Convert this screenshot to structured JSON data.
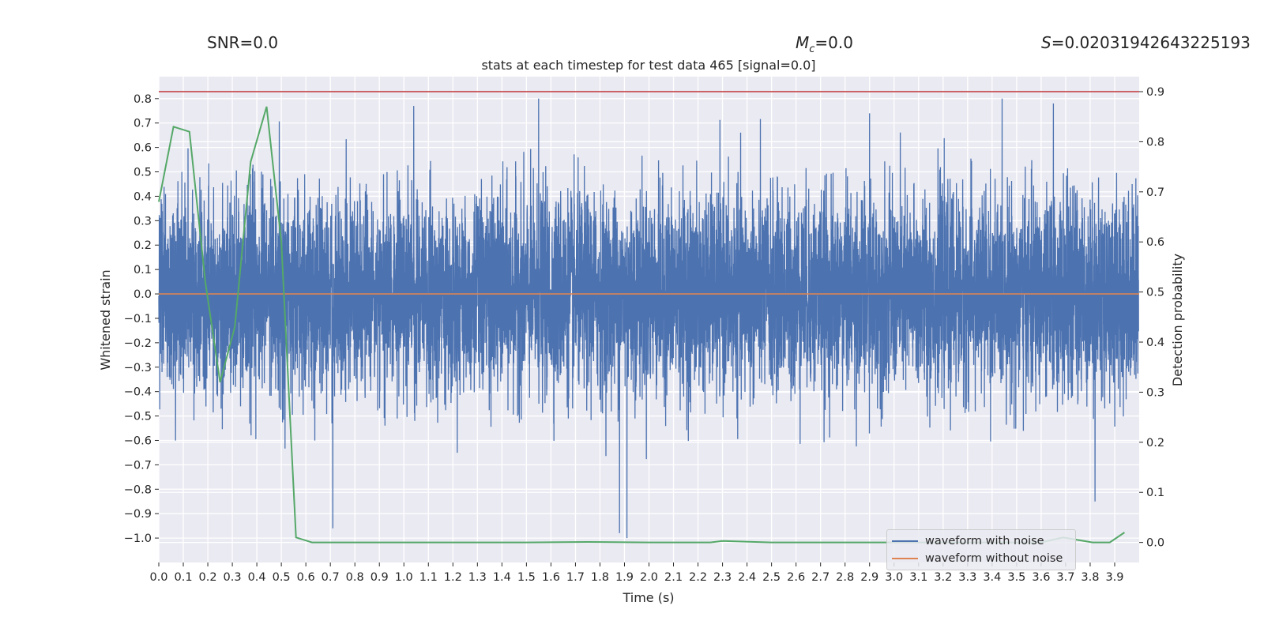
{
  "header": {
    "snr_text": "SNR=0.0",
    "mc_symbol": "M",
    "mc_subscript": "c",
    "mc_value": "=0.0",
    "s_symbol": "S",
    "s_value": "=0.02031942643225193"
  },
  "chart_data": {
    "type": "line",
    "title": "stats at each timestep for test data 465 [signal=0.0]",
    "xlabel": "Time (s)",
    "ylabel": "Whitened strain",
    "y2label": "Detection probability",
    "xlim": [
      0.0,
      4.0
    ],
    "ylim": [
      -1.1,
      0.89
    ],
    "y2lim": [
      -0.04,
      0.93
    ],
    "x_ticks": [
      "0.0",
      "0.1",
      "0.2",
      "0.3",
      "0.4",
      "0.5",
      "0.6",
      "0.7",
      "0.8",
      "0.9",
      "1.0",
      "1.1",
      "1.2",
      "1.3",
      "1.4",
      "1.5",
      "1.6",
      "1.7",
      "1.8",
      "1.9",
      "2.0",
      "2.1",
      "2.2",
      "2.3",
      "2.4",
      "2.5",
      "2.6",
      "2.7",
      "2.8",
      "2.9",
      "3.0",
      "3.1",
      "3.2",
      "3.3",
      "3.4",
      "3.5",
      "3.6",
      "3.7",
      "3.8",
      "3.9"
    ],
    "y_ticks": [
      "0.8",
      "0.7",
      "0.6",
      "0.5",
      "0.4",
      "0.3",
      "0.2",
      "0.1",
      "0.0",
      "−0.1",
      "−0.2",
      "−0.3",
      "−0.4",
      "−0.5",
      "−0.6",
      "−0.7",
      "−0.8",
      "−0.9",
      "−1.0"
    ],
    "y2_ticks": [
      "0.9",
      "0.8",
      "0.7",
      "0.6",
      "0.5",
      "0.4",
      "0.3",
      "0.2",
      "0.1",
      "0.0"
    ],
    "grid": true,
    "legend_position": "lower-right",
    "colors": {
      "waveform_with_noise": "#4c72b0",
      "waveform_without_noise": "#dd8452",
      "detection_probability": "#55a868",
      "threshold": "#c44e52",
      "plot_background": "#eaeaf2",
      "grid": "#ffffff"
    },
    "series": [
      {
        "name": "waveform with noise",
        "axis": "left",
        "x_range": [
          0.0,
          3.998
        ],
        "sample_rate": 2048,
        "approx_std": 0.2,
        "envelope_max": 0.8,
        "envelope_min": -1.0,
        "notable_peaks": [
          {
            "x": 0.71,
            "y": -0.96
          },
          {
            "x": 1.04,
            "y": 0.77
          },
          {
            "x": 1.55,
            "y": 0.8
          },
          {
            "x": 1.88,
            "y": -0.98
          },
          {
            "x": 1.91,
            "y": -1.0
          },
          {
            "x": 2.9,
            "y": 0.74
          },
          {
            "x": 3.65,
            "y": 0.78
          },
          {
            "x": 3.82,
            "y": -0.85
          }
        ]
      },
      {
        "name": "waveform without noise",
        "axis": "left",
        "x": [
          0.0,
          4.0
        ],
        "y": [
          0.0,
          0.0
        ]
      },
      {
        "name": "detection probability",
        "axis": "right",
        "x": [
          0.0,
          0.06,
          0.125,
          0.19,
          0.25,
          0.31,
          0.375,
          0.44,
          0.5,
          0.56,
          0.625,
          0.69,
          0.75,
          1.0,
          1.25,
          1.5,
          1.75,
          2.0,
          2.25,
          2.3,
          2.5,
          2.75,
          3.0,
          3.25,
          3.5,
          3.6,
          3.69,
          3.75,
          3.81,
          3.88,
          3.94
        ],
        "y": [
          0.68,
          0.83,
          0.82,
          0.52,
          0.32,
          0.43,
          0.76,
          0.87,
          0.6,
          0.01,
          0.0,
          0.0,
          0.0,
          0.0,
          0.0,
          0.0,
          0.001,
          0.0,
          0.0,
          0.003,
          0.0,
          0.0,
          0.0,
          0.0,
          0.0,
          0.0,
          0.01,
          0.005,
          0.0,
          0.0,
          0.02
        ]
      },
      {
        "name": "threshold",
        "axis": "right",
        "x": [
          0.0,
          4.0
        ],
        "y": [
          0.9,
          0.9
        ]
      }
    ]
  },
  "legend": {
    "items": [
      {
        "label": "waveform with noise",
        "color": "#4c72b0"
      },
      {
        "label": "waveform without noise",
        "color": "#dd8452"
      }
    ]
  }
}
